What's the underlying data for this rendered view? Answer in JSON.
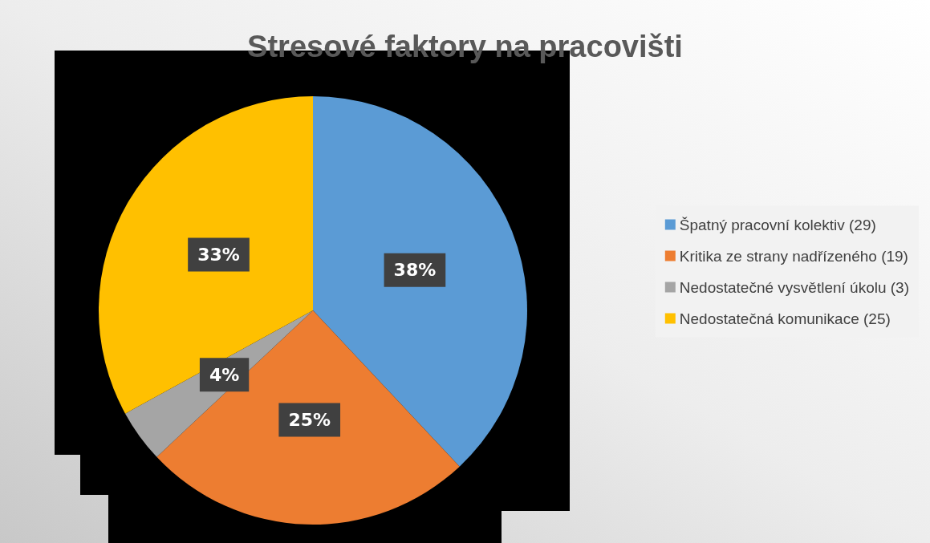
{
  "chart_data": {
    "type": "pie",
    "title": "Stresové faktory na pracovišti",
    "categories": [
      "Špatný pracovní kolektiv (29)",
      "Kritika ze strany nadřízeného (19)",
      "Nedostatečné vysvětlení úkolu (3)",
      "Nedostatečná komunikace (25)"
    ],
    "values": [
      38,
      25,
      4,
      33
    ],
    "colors": [
      "#5b9bd5",
      "#ed7d31",
      "#a5a5a5",
      "#ffc000"
    ],
    "value_labels": [
      "38%",
      "25%",
      "4%",
      "33%"
    ],
    "legend": "right"
  }
}
